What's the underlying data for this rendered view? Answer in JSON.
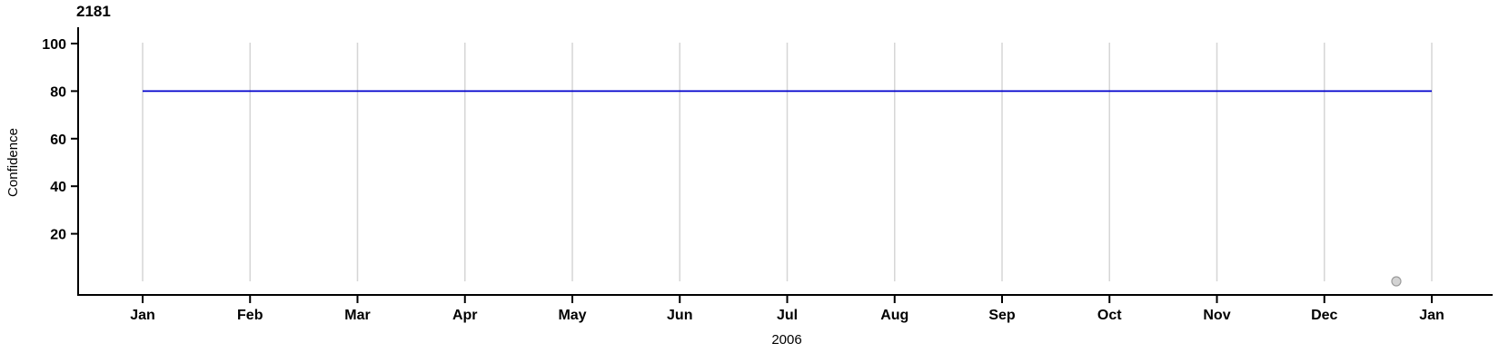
{
  "chart": {
    "title": "2181",
    "y_axis_label": "Confidence",
    "x_axis_label": "2006"
  },
  "chart_data": {
    "type": "line",
    "title": "2181",
    "xlabel": "2006",
    "ylabel": "Confidence",
    "x_tick_labels": [
      "Jan",
      "Feb",
      "Mar",
      "Apr",
      "May",
      "Jun",
      "Jul",
      "Aug",
      "Sep",
      "Oct",
      "Nov",
      "Dec",
      "Jan"
    ],
    "x_range": [
      "2006-01-01",
      "2007-01-01"
    ],
    "y_ticks": [
      20,
      40,
      60,
      80,
      100
    ],
    "ylim": [
      0,
      100
    ],
    "grid": "vertical-only",
    "legend": "none",
    "series": [
      {
        "name": "confidence-threshold-line",
        "type": "hline",
        "value": 80,
        "x_start_frac": 0,
        "x_end_frac": 1,
        "color": "#0000cc"
      }
    ],
    "scatter_points": [
      {
        "name": "outlier-point",
        "x_date_approx": "2006-12-21",
        "x_frac": 0.9725,
        "y": 0,
        "fill": "#d3d3d3",
        "stroke": "#9c9c9c"
      }
    ],
    "colors": {
      "axis": "#000000",
      "gridline": "#d6d6d6",
      "text": "#000000",
      "background": "#ffffff"
    }
  }
}
